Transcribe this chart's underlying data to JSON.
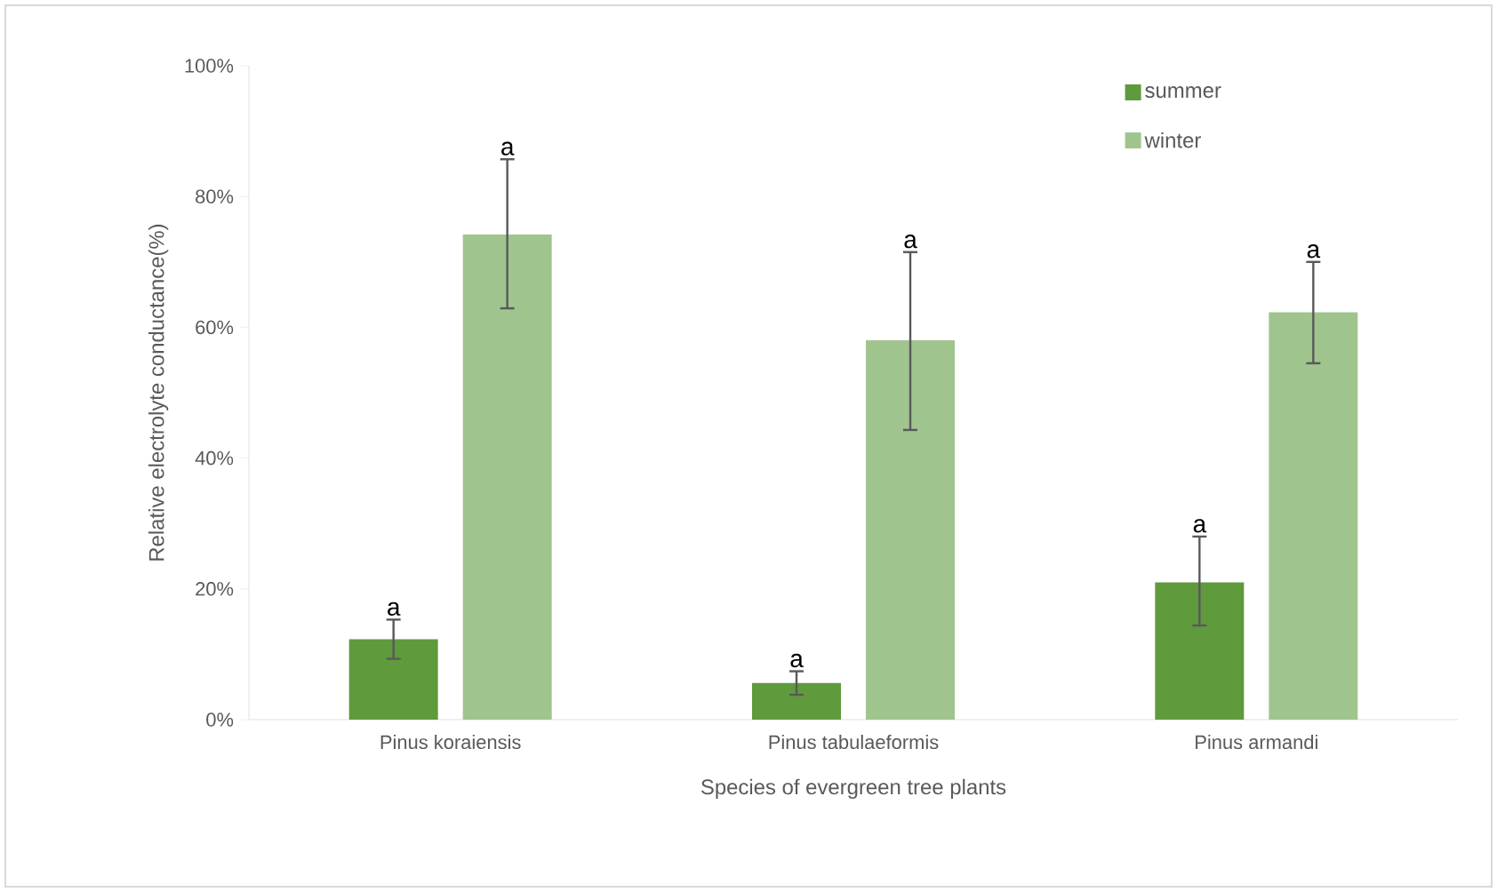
{
  "chart_data": {
    "type": "bar",
    "xlabel": "Species of evergreen tree plants",
    "ylabel": "Relative electrolyte conductance(%)",
    "categories": [
      "Pinus koraiensis",
      "Pinus tabulaeformis",
      "Pinus armandi"
    ],
    "series": [
      {
        "name": "summer",
        "color": "#5f9a3c",
        "values": [
          12.3,
          5.6,
          21.0
        ],
        "errors": [
          [
            9.3,
            15.3
          ],
          [
            3.8,
            7.4
          ],
          [
            14.4,
            28.0
          ]
        ]
      },
      {
        "name": "winter",
        "color": "#a0c48e",
        "values": [
          74.2,
          58.0,
          62.3
        ],
        "errors": [
          [
            62.9,
            85.7
          ],
          [
            44.3,
            71.5
          ],
          [
            54.5,
            70.0
          ]
        ]
      }
    ],
    "ylim": [
      0,
      100
    ],
    "yticks": [
      {
        "value": 0,
        "label": "0%"
      },
      {
        "value": 20,
        "label": "20%"
      },
      {
        "value": 40,
        "label": "40%"
      },
      {
        "value": 60,
        "label": "60%"
      },
      {
        "value": 80,
        "label": "80%"
      },
      {
        "value": 100,
        "label": "100%"
      }
    ],
    "annotations": [
      "a",
      "a",
      "a",
      "a",
      "a",
      "a"
    ],
    "grid": false,
    "legend": "top right"
  }
}
